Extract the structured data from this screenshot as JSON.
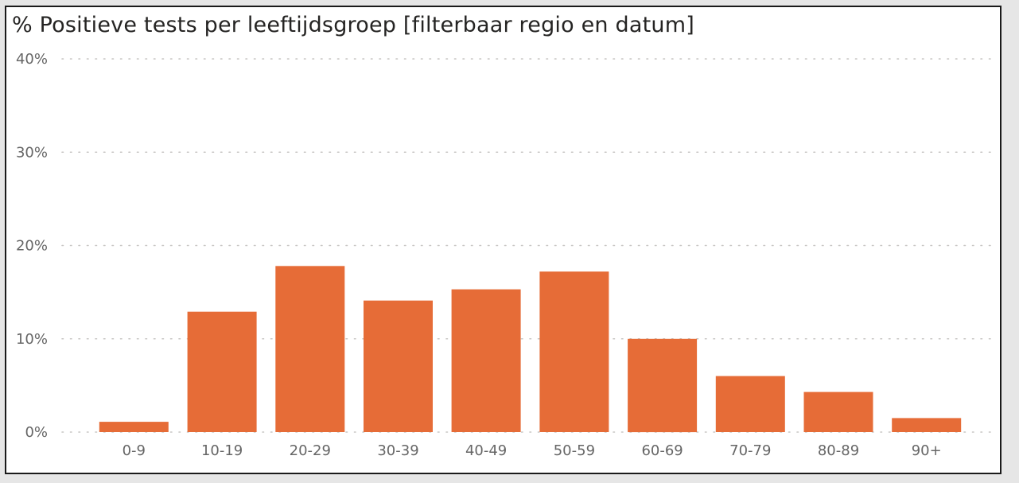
{
  "chart_data": {
    "type": "bar",
    "title": "% Positieve tests per leeftijdsgroep [filterbaar regio en datum]",
    "xlabel": "",
    "ylabel": "",
    "categories": [
      "0-9",
      "10-19",
      "20-29",
      "30-39",
      "40-49",
      "50-59",
      "60-69",
      "70-79",
      "80-89",
      "90+"
    ],
    "values": [
      1.1,
      12.9,
      17.8,
      14.1,
      15.3,
      17.2,
      10.0,
      6.0,
      4.3,
      1.5
    ],
    "ylim": [
      0,
      40
    ],
    "yticks": [
      0,
      10,
      20,
      30,
      40
    ],
    "ytick_labels": [
      "0%",
      "10%",
      "20%",
      "30%",
      "40%"
    ],
    "grid": true,
    "legend": "none",
    "bar_color": "#E66C37",
    "gridline_color": "#C8C6C4"
  }
}
